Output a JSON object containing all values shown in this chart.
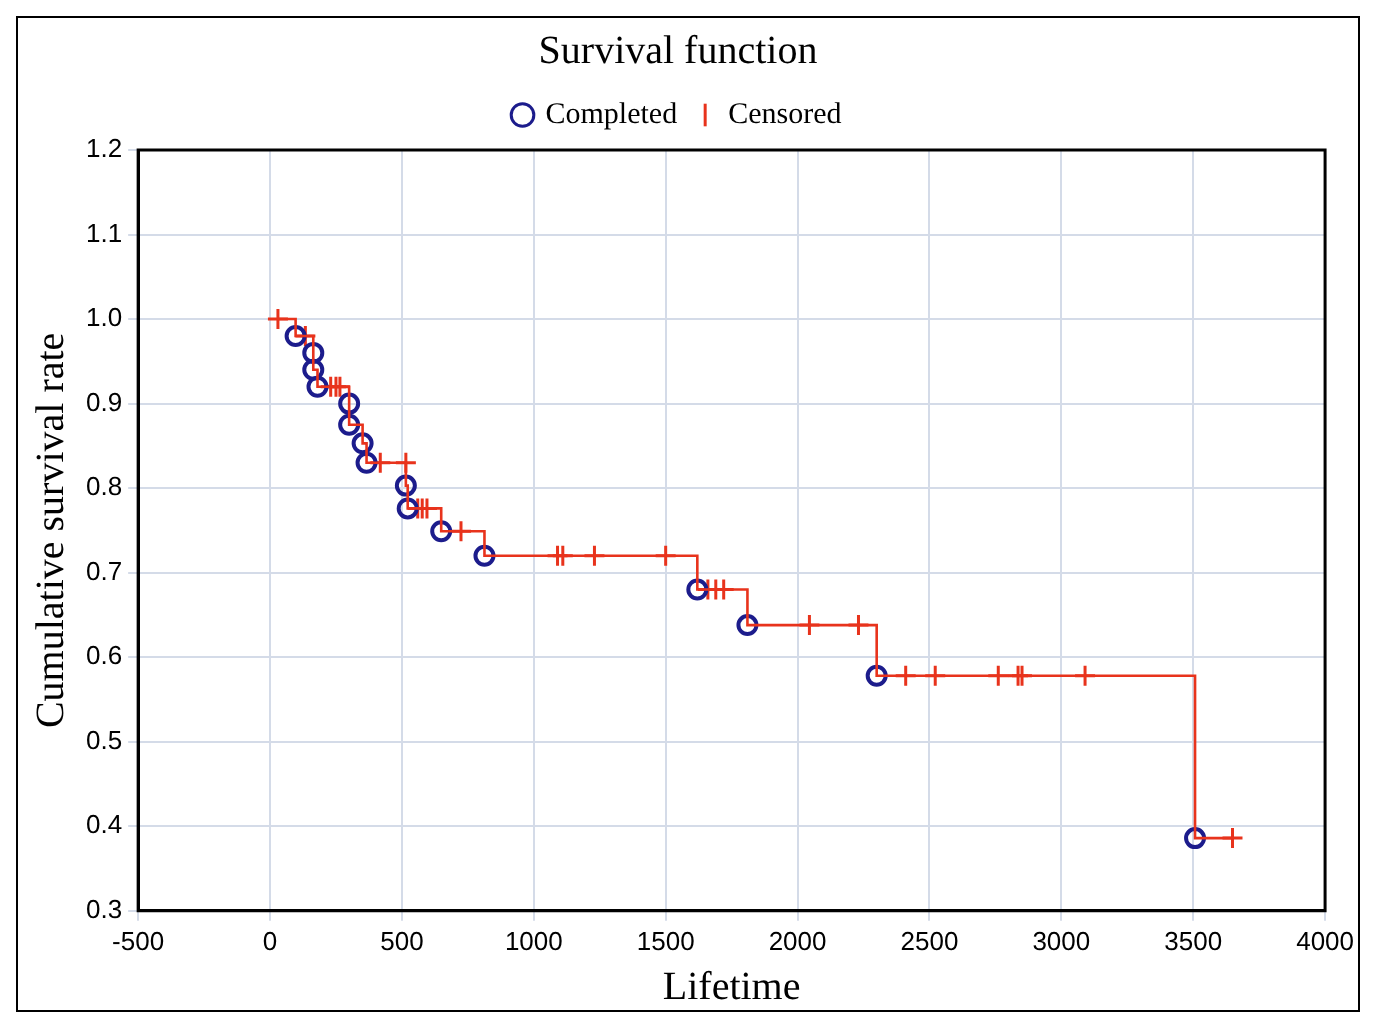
{
  "chart_data": {
    "type": "scatter",
    "title": "Survival function",
    "xlabel": "Lifetime",
    "ylabel": "Cumulative survival rate",
    "xlim": [
      -500,
      4000
    ],
    "xticks": [
      -500,
      0,
      500,
      1000,
      1500,
      2000,
      2500,
      3000,
      3500,
      4000
    ],
    "ylim": [
      0.3,
      1.2
    ],
    "yticks": [
      0.3,
      0.4,
      0.5,
      0.6,
      0.7,
      0.8,
      0.9,
      {
        "value": 1,
        "label": "1.0"
      },
      1.1,
      1.2
    ],
    "grid": true,
    "legend": "top",
    "series": [
      {
        "type": "step",
        "color": "#e8331c",
        "marker": "none",
        "x": [
          30,
          97,
          164,
          164,
          180,
          300,
          300,
          351,
          366,
          515,
          522,
          649,
          813,
          1620,
          1810,
          2300,
          3507,
          3649
        ],
        "values": [
          1.0,
          0.98,
          0.96,
          0.94,
          0.92,
          0.9,
          0.875,
          0.853,
          0.83,
          0.803,
          0.776,
          0.749,
          0.72,
          0.68,
          0.638,
          0.578,
          0.386,
          0.386
        ]
      },
      {
        "type": "scatter",
        "name": "Completed",
        "color": "#1c1c8c",
        "marker": "circle",
        "x": [
          97,
          164,
          164,
          180,
          300,
          300,
          351,
          366,
          515,
          522,
          649,
          813,
          1620,
          1810,
          2300,
          3507
        ],
        "values": [
          0.98,
          0.96,
          0.94,
          0.92,
          0.9,
          0.875,
          0.853,
          0.83,
          0.803,
          0.776,
          0.749,
          0.72,
          0.68,
          0.638,
          0.578,
          0.386
        ]
      },
      {
        "type": "scatter",
        "name": "Censored",
        "color": "#e8331c",
        "marker": "cross",
        "x": [
          30,
          134,
          230,
          250,
          265,
          418,
          515,
          560,
          577,
          595,
          724,
          1090,
          1110,
          1230,
          1500,
          1660,
          1690,
          1720,
          2045,
          2231,
          2410,
          2522,
          2761,
          2836,
          2851,
          3090,
          3649
        ],
        "values": [
          1.0,
          0.98,
          0.92,
          0.92,
          0.92,
          0.83,
          0.83,
          0.776,
          0.776,
          0.776,
          0.749,
          0.72,
          0.72,
          0.72,
          0.72,
          0.68,
          0.68,
          0.68,
          0.638,
          0.638,
          0.578,
          0.578,
          0.578,
          0.578,
          0.578,
          0.578,
          0.386
        ]
      }
    ]
  }
}
